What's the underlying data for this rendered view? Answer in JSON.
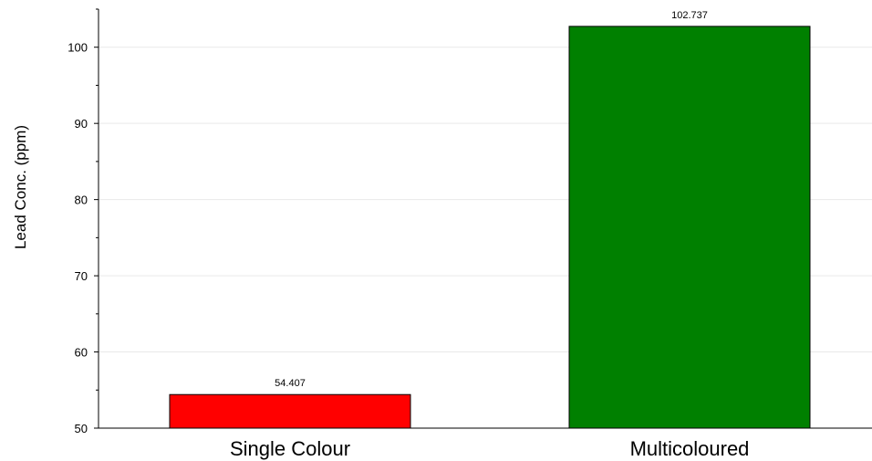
{
  "chart_data": {
    "type": "bar",
    "title": "",
    "xlabel": "",
    "ylabel": "Lead Conc. (ppm)",
    "categories": [
      "Single Colour",
      "Multicoloured"
    ],
    "values": [
      54.407,
      102.737
    ],
    "value_labels": [
      "54.407",
      "102.737"
    ],
    "colors": [
      "#ff0000",
      "#008000"
    ],
    "ylim": [
      50,
      105
    ],
    "yticks": [
      50,
      60,
      70,
      80,
      90,
      100
    ],
    "ytick_labels": [
      "50",
      "60",
      "70",
      "80",
      "90",
      "100"
    ],
    "grid": true,
    "legend": "none"
  }
}
